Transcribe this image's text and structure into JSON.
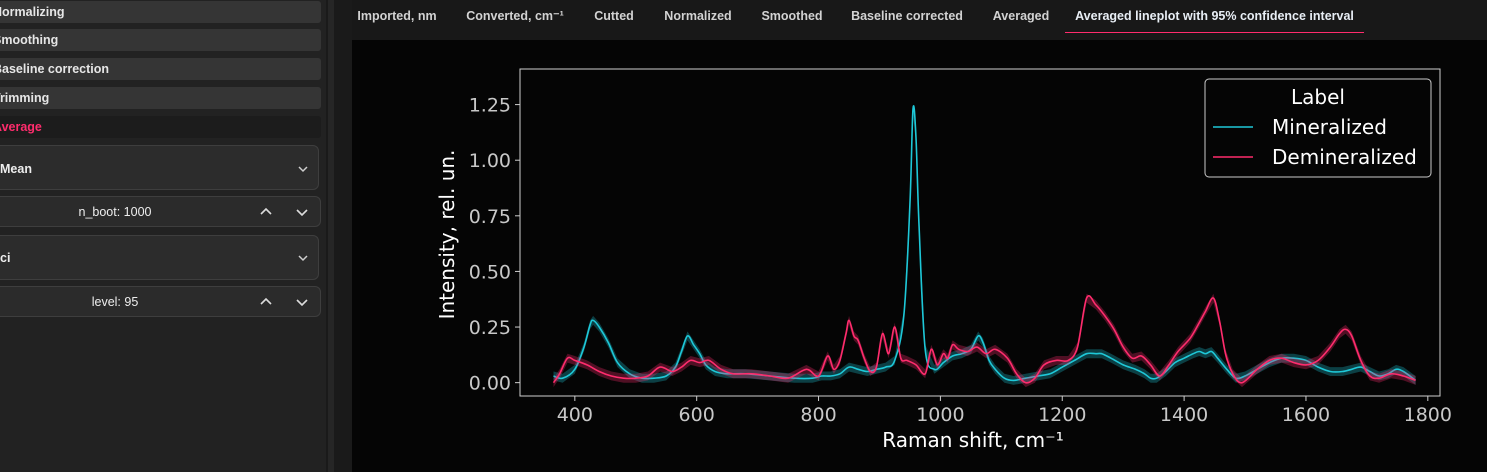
{
  "sidebar": {
    "steps": [
      {
        "label": "Normalizing",
        "active": false
      },
      {
        "label": "Smoothing",
        "active": false
      },
      {
        "label": "Baseline correction",
        "active": false
      },
      {
        "label": "Trimming",
        "active": false
      },
      {
        "label": "Average",
        "active": true
      }
    ],
    "estimator": {
      "title": "Mean"
    },
    "n_boot": {
      "label": "n_boot: 1000"
    },
    "errorbar": {
      "title": "ci"
    },
    "level": {
      "label": "level: 95"
    }
  },
  "tabs": [
    {
      "label": "Imported, nm",
      "active": false
    },
    {
      "label": "Converted, cm⁻¹",
      "active": false
    },
    {
      "label": "Cutted",
      "active": false
    },
    {
      "label": "Normalized",
      "active": false
    },
    {
      "label": "Smoothed",
      "active": false
    },
    {
      "label": "Baseline corrected",
      "active": false
    },
    {
      "label": "Averaged",
      "active": false
    },
    {
      "label": "Averaged lineplot with 95% confidence interval",
      "active": true
    }
  ],
  "chart_data": {
    "type": "line",
    "xlabel": "Raman shift, cm⁻¹",
    "ylabel": "Intensity, rel. un.",
    "xlim": [
      310,
      1820
    ],
    "ylim": [
      -0.06,
      1.41
    ],
    "xticks": [
      400,
      600,
      800,
      1000,
      1200,
      1400,
      1600,
      1800
    ],
    "yticks": [
      0.0,
      0.25,
      0.5,
      0.75,
      1.0,
      1.25
    ],
    "ytick_labels": [
      "0.00",
      "0.25",
      "0.50",
      "0.75",
      "1.00",
      "1.25"
    ],
    "grid": false,
    "legend": {
      "title": "Label",
      "placement": "top-right"
    },
    "series": [
      {
        "name": "Mineralized",
        "color": "#1ec8d8",
        "ci": 0.02,
        "x": [
          365,
          380,
          400,
          415,
          425,
          430,
          440,
          455,
          470,
          490,
          510,
          530,
          550,
          565,
          575,
          585,
          595,
          605,
          615,
          630,
          650,
          680,
          720,
          760,
          790,
          805,
          820,
          835,
          850,
          865,
          880,
          895,
          910,
          925,
          940,
          950,
          955,
          960,
          965,
          975,
          990,
          1005,
          1020,
          1035,
          1050,
          1062,
          1070,
          1080,
          1090,
          1105,
          1120,
          1140,
          1160,
          1180,
          1200,
          1220,
          1240,
          1255,
          1265,
          1280,
          1300,
          1320,
          1335,
          1345,
          1355,
          1370,
          1385,
          1400,
          1415,
          1425,
          1435,
          1445,
          1455,
          1470,
          1485,
          1500,
          1520,
          1540,
          1560,
          1580,
          1600,
          1620,
          1640,
          1660,
          1675,
          1690,
          1705,
          1720,
          1735,
          1748,
          1760,
          1780
        ],
        "y": [
          0.03,
          0.02,
          0.06,
          0.16,
          0.26,
          0.28,
          0.25,
          0.18,
          0.09,
          0.04,
          0.02,
          0.02,
          0.03,
          0.07,
          0.14,
          0.21,
          0.17,
          0.13,
          0.08,
          0.05,
          0.04,
          0.04,
          0.03,
          0.02,
          0.02,
          0.03,
          0.03,
          0.04,
          0.07,
          0.06,
          0.05,
          0.06,
          0.07,
          0.1,
          0.3,
          0.8,
          1.23,
          1.1,
          0.7,
          0.15,
          0.06,
          0.09,
          0.12,
          0.13,
          0.15,
          0.21,
          0.18,
          0.1,
          0.06,
          0.02,
          0.01,
          0.02,
          0.03,
          0.04,
          0.07,
          0.1,
          0.13,
          0.13,
          0.13,
          0.11,
          0.08,
          0.06,
          0.04,
          0.02,
          0.02,
          0.05,
          0.09,
          0.11,
          0.13,
          0.14,
          0.13,
          0.14,
          0.11,
          0.06,
          0.02,
          0.03,
          0.06,
          0.09,
          0.11,
          0.11,
          0.1,
          0.07,
          0.05,
          0.05,
          0.06,
          0.07,
          0.05,
          0.03,
          0.04,
          0.06,
          0.05,
          0.01
        ]
      },
      {
        "name": "Demineralized",
        "color": "#ff2c6d",
        "ci": 0.02,
        "x": [
          365,
          375,
          388,
          400,
          420,
          440,
          460,
          480,
          500,
          520,
          540,
          560,
          575,
          590,
          605,
          620,
          640,
          660,
          690,
          720,
          750,
          780,
          800,
          815,
          825,
          835,
          845,
          850,
          858,
          865,
          875,
          885,
          895,
          905,
          915,
          925,
          935,
          945,
          960,
          975,
          985,
          995,
          1005,
          1012,
          1020,
          1030,
          1045,
          1060,
          1075,
          1090,
          1110,
          1125,
          1140,
          1155,
          1170,
          1190,
          1210,
          1225,
          1240,
          1255,
          1270,
          1285,
          1300,
          1315,
          1330,
          1345,
          1360,
          1375,
          1390,
          1410,
          1425,
          1435,
          1448,
          1458,
          1468,
          1480,
          1495,
          1520,
          1540,
          1560,
          1580,
          1600,
          1620,
          1640,
          1655,
          1665,
          1675,
          1690,
          1705,
          1720,
          1740,
          1760,
          1780
        ],
        "y": [
          0.0,
          0.04,
          0.11,
          0.1,
          0.08,
          0.05,
          0.03,
          0.02,
          0.02,
          0.03,
          0.07,
          0.05,
          0.07,
          0.1,
          0.09,
          0.1,
          0.06,
          0.04,
          0.04,
          0.03,
          0.02,
          0.06,
          0.03,
          0.12,
          0.06,
          0.1,
          0.22,
          0.28,
          0.21,
          0.19,
          0.11,
          0.05,
          0.07,
          0.22,
          0.13,
          0.25,
          0.11,
          0.1,
          0.08,
          0.04,
          0.15,
          0.08,
          0.13,
          0.11,
          0.17,
          0.15,
          0.14,
          0.16,
          0.13,
          0.15,
          0.11,
          0.04,
          0.0,
          0.02,
          0.08,
          0.1,
          0.1,
          0.16,
          0.38,
          0.35,
          0.3,
          0.24,
          0.16,
          0.11,
          0.12,
          0.08,
          0.03,
          0.08,
          0.14,
          0.2,
          0.27,
          0.32,
          0.38,
          0.28,
          0.13,
          0.04,
          0.0,
          0.06,
          0.1,
          0.11,
          0.09,
          0.08,
          0.1,
          0.16,
          0.22,
          0.24,
          0.21,
          0.1,
          0.03,
          0.02,
          0.04,
          0.03,
          0.01
        ]
      }
    ]
  }
}
